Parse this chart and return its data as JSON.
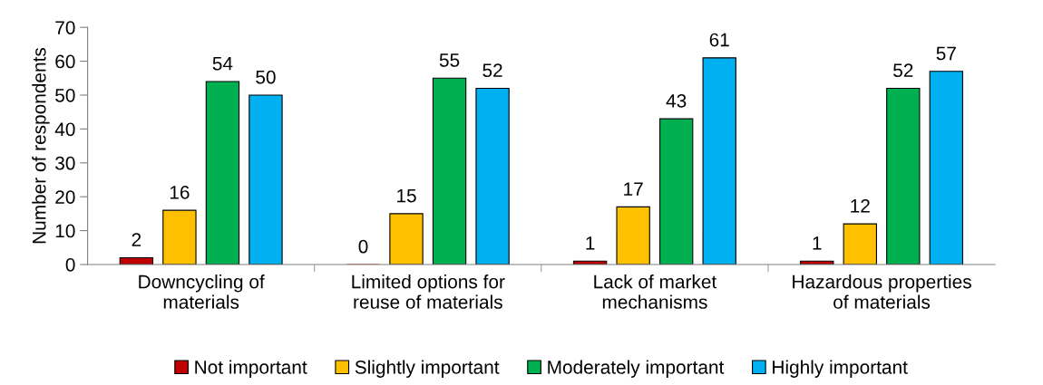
{
  "chart_data": {
    "type": "bar",
    "ylabel": "Number of respondents",
    "categories": [
      "Downcycling of\nmaterials",
      "Limited options for\nreuse of materials",
      "Lack of market\nmechanisms",
      "Hazardous properties\nof materials"
    ],
    "series": [
      {
        "name": "Not important",
        "color": "#c00000",
        "values": [
          2,
          0,
          1,
          1
        ]
      },
      {
        "name": "Slightly important",
        "color": "#ffc000",
        "values": [
          16,
          15,
          17,
          12
        ]
      },
      {
        "name": "Moderately important",
        "color": "#00b050",
        "values": [
          54,
          55,
          43,
          52
        ]
      },
      {
        "name": "Highly important",
        "color": "#00b0f0",
        "values": [
          50,
          52,
          61,
          57
        ]
      }
    ],
    "ylim": [
      0,
      70
    ],
    "yticks": [
      0,
      10,
      20,
      30,
      40,
      50,
      60,
      70
    ],
    "data_labels": true,
    "grid": false,
    "legend": "bottom"
  }
}
